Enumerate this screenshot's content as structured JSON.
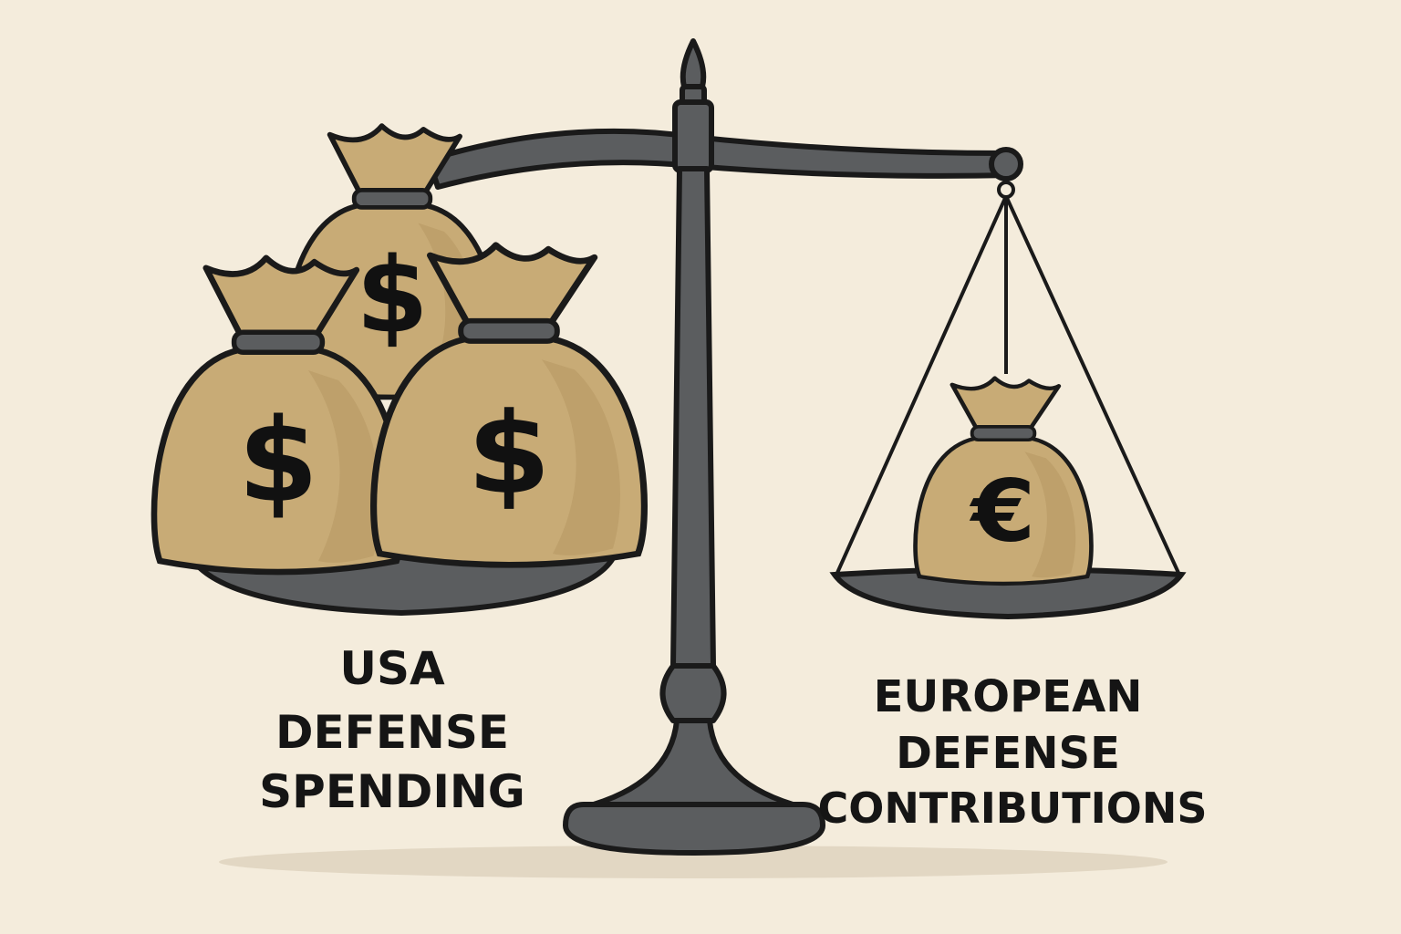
{
  "illustration": {
    "left_label": [
      "USA",
      "DEFENSE",
      "SPENDING"
    ],
    "right_label": [
      "EUROPEAN",
      "DEFENSE",
      "CONTRIBUTIONS"
    ],
    "left_bag_symbol": "$",
    "right_bag_symbol": "€",
    "left_bag_count": 3,
    "right_bag_count": 1,
    "colors": {
      "background": "#f4ecdc",
      "bag": "#c8ab76",
      "scale_metal": "#5b5d5f",
      "outline": "#1a1a1a"
    }
  }
}
